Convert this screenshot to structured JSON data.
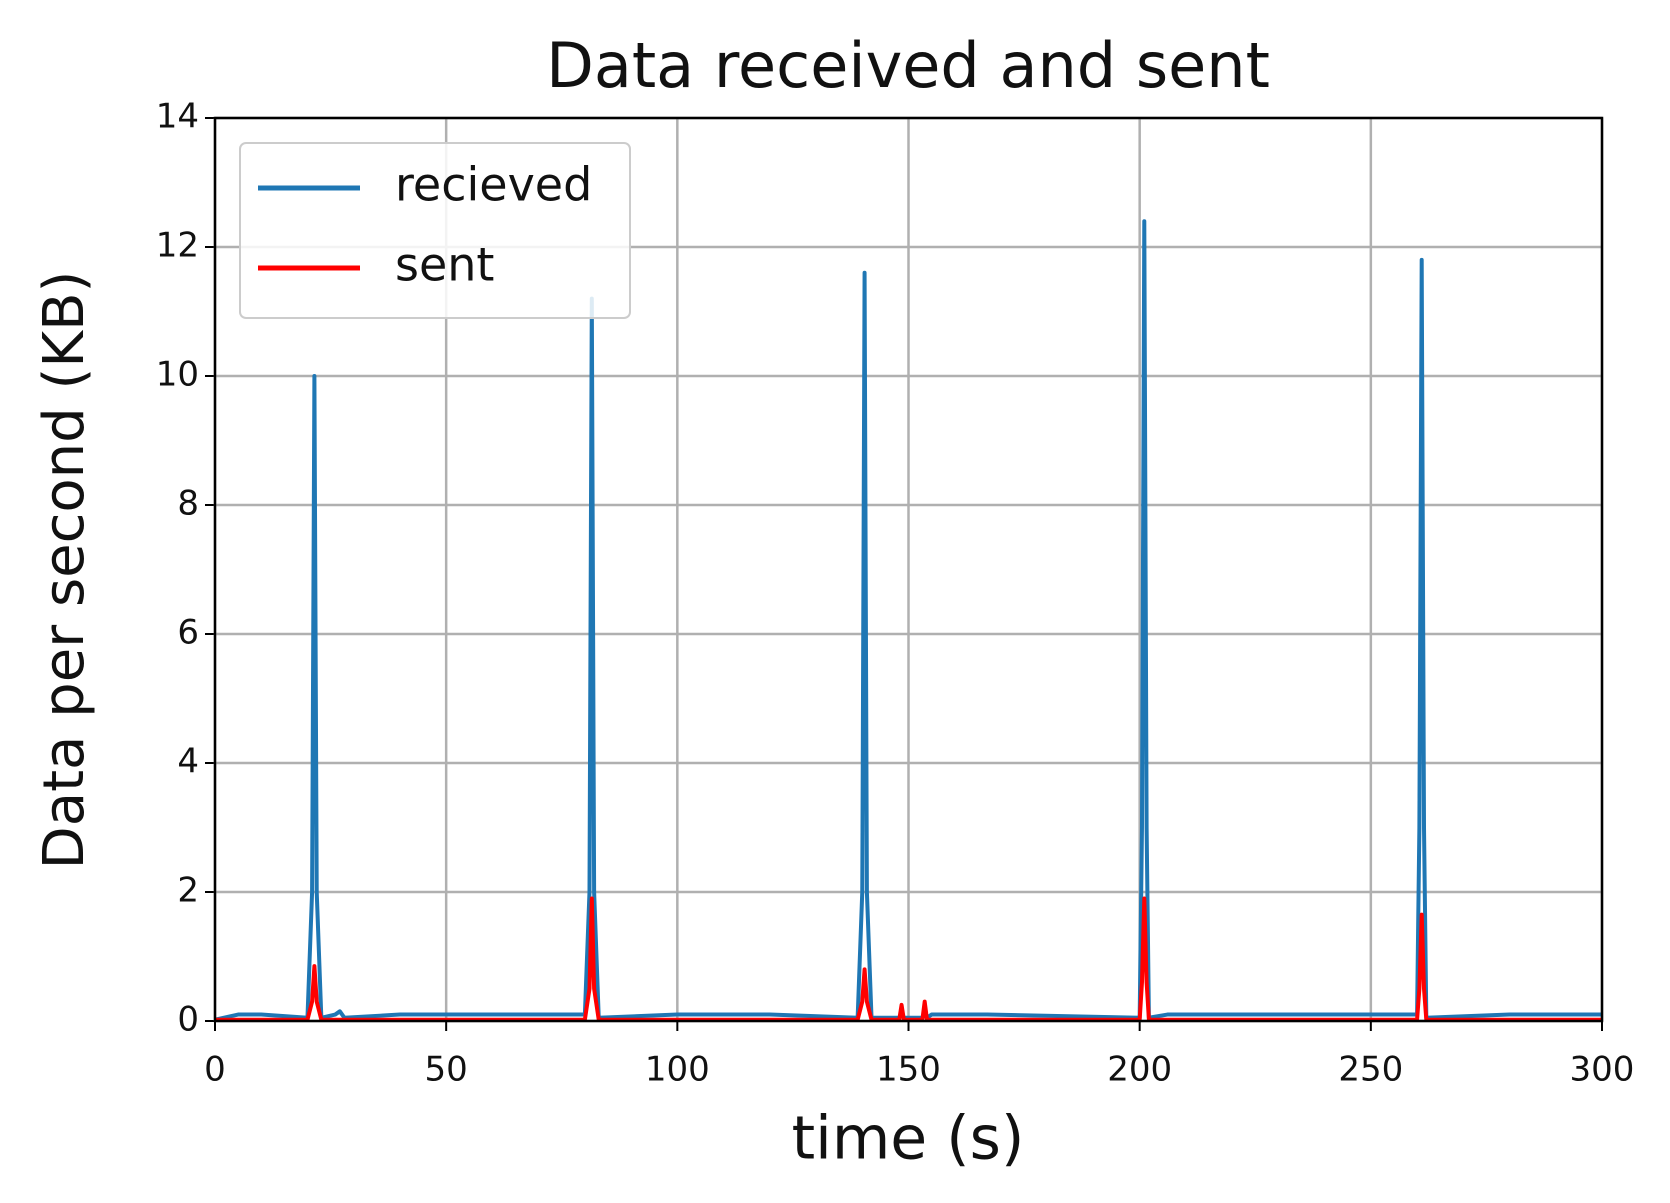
{
  "chart_data": {
    "type": "line",
    "title": "Data received and sent",
    "xlabel": "time (s)",
    "ylabel": "Data per second (KB)",
    "x": [
      0,
      5,
      10,
      20,
      21,
      21.5,
      22,
      23,
      26,
      27,
      28,
      40,
      45,
      75,
      80,
      81,
      81.5,
      82,
      83,
      100,
      105,
      115,
      120,
      139,
      140,
      140.5,
      141,
      142,
      148,
      148.5,
      149,
      153,
      153.5,
      154,
      155,
      160,
      167,
      200,
      200.5,
      201,
      201.5,
      202,
      206,
      215,
      220,
      250,
      255,
      260,
      260.5,
      261,
      261.5,
      262,
      280,
      287,
      295,
      300
    ],
    "series": [
      {
        "name": "recieved",
        "color": "#1f77b4",
        "values": [
          0.02,
          0.1,
          0.1,
          0.05,
          2,
          10,
          2,
          0.05,
          0.1,
          0.15,
          0.05,
          0.1,
          0.1,
          0.1,
          0.1,
          2,
          11.2,
          2,
          0.05,
          0.1,
          0.1,
          0.1,
          0.1,
          0.05,
          2,
          11.6,
          2,
          0.05,
          0.05,
          0.1,
          0.05,
          0.05,
          0.1,
          0.05,
          0.1,
          0.1,
          0.1,
          0.05,
          3,
          12.4,
          3,
          0.05,
          0.1,
          0.1,
          0.1,
          0.1,
          0.1,
          0.1,
          3,
          11.8,
          3,
          0.05,
          0.1,
          0.1,
          0.1,
          0.1
        ]
      },
      {
        "name": "sent",
        "color": "#ff0000",
        "values": [
          0.02,
          0.02,
          0.02,
          0.02,
          0.3,
          0.85,
          0.3,
          0.02,
          0.02,
          0.02,
          0.02,
          0.02,
          0.02,
          0.02,
          0.02,
          0.5,
          1.9,
          0.5,
          0.02,
          0.02,
          0.02,
          0.02,
          0.02,
          0.02,
          0.3,
          0.8,
          0.3,
          0.02,
          0.02,
          0.25,
          0.02,
          0.02,
          0.3,
          0.02,
          0.02,
          0.02,
          0.02,
          0.02,
          0.6,
          1.9,
          0.6,
          0.02,
          0.02,
          0.02,
          0.02,
          0.02,
          0.02,
          0.02,
          0.5,
          1.65,
          0.5,
          0.02,
          0.02,
          0.02,
          0.02,
          0.02
        ]
      }
    ],
    "xlim": [
      0,
      300
    ],
    "xticks": [
      0,
      50,
      100,
      150,
      200,
      250,
      300
    ],
    "ylim": [
      0,
      14
    ],
    "yticks": [
      0,
      2,
      4,
      6,
      8,
      10,
      12,
      14
    ],
    "grid": true,
    "legend": "upper left"
  }
}
